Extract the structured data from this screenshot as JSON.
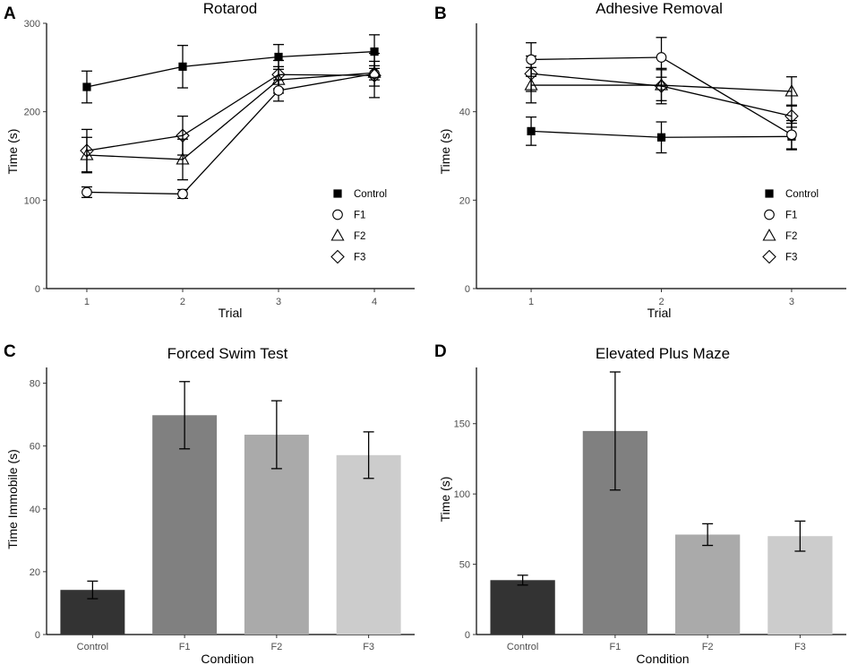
{
  "chart_data": [
    {
      "panel": "A",
      "type": "line",
      "title": "Rotarod",
      "xlabel": "Trial",
      "ylabel": "Time (s)",
      "x": [
        1,
        2,
        3,
        4
      ],
      "xticks": [
        "1",
        "2",
        "3",
        "4"
      ],
      "ylim": [
        0,
        300
      ],
      "yticks": [
        0,
        100,
        200,
        300
      ],
      "legend_position": "bottom-right",
      "series": [
        {
          "name": "Control",
          "marker": "filled-square",
          "values": [
            228,
            251,
            262,
            268
          ],
          "errors": [
            18,
            24,
            14,
            19
          ]
        },
        {
          "name": "F1",
          "marker": "open-circle",
          "values": [
            109,
            107,
            224,
            243
          ],
          "errors": [
            6,
            5,
            12,
            14
          ]
        },
        {
          "name": "F2",
          "marker": "open-triangle",
          "values": [
            151,
            146,
            236,
            244
          ],
          "errors": [
            20,
            23,
            15,
            8
          ]
        },
        {
          "name": "F3",
          "marker": "open-diamond",
          "values": [
            156,
            173,
            242,
            241
          ],
          "errors": [
            24,
            22,
            16,
            25
          ]
        }
      ]
    },
    {
      "panel": "B",
      "type": "line",
      "title": "Adhesive Removal",
      "xlabel": "Trial",
      "ylabel": "Time (s)",
      "x": [
        1,
        2,
        3
      ],
      "xticks": [
        "1",
        "2",
        "3"
      ],
      "ylim": [
        0,
        60
      ],
      "yticks": [
        0,
        20,
        40
      ],
      "legend_position": "bottom-right",
      "series": [
        {
          "name": "Control",
          "marker": "filled-square",
          "values": [
            35.6,
            34.2,
            34.4
          ],
          "errors": [
            3.2,
            3.5,
            3.0
          ]
        },
        {
          "name": "F1",
          "marker": "open-circle",
          "values": [
            51.8,
            52.3,
            34.8
          ],
          "errors": [
            3.8,
            4.5,
            3.2
          ]
        },
        {
          "name": "F2",
          "marker": "open-triangle",
          "values": [
            46.0,
            46.0,
            44.6
          ],
          "errors": [
            4.0,
            3.5,
            3.3
          ]
        },
        {
          "name": "F3",
          "marker": "open-diamond",
          "values": [
            48.6,
            45.8,
            39.0
          ],
          "errors": [
            4.0,
            4.0,
            2.5
          ]
        }
      ]
    },
    {
      "panel": "C",
      "type": "bar",
      "title": "Forced Swim Test",
      "xlabel": "Condition",
      "ylabel": "Time Immobile (s)",
      "categories": [
        "Control",
        "F1",
        "F2",
        "F3"
      ],
      "values": [
        14.2,
        69.8,
        63.6,
        57.1
      ],
      "errors": [
        2.8,
        10.7,
        10.8,
        7.4
      ],
      "colors": [
        "#333333",
        "#808080",
        "#aaaaaa",
        "#cccccc"
      ],
      "ylim": [
        0,
        85
      ],
      "yticks": [
        0,
        20,
        40,
        60,
        80
      ]
    },
    {
      "panel": "D",
      "type": "bar",
      "title": "Elevated Plus Maze",
      "xlabel": "Condition",
      "ylabel": "Time (s)",
      "categories": [
        "Control",
        "F1",
        "F2",
        "F3"
      ],
      "values": [
        38.7,
        144.8,
        71.1,
        70.0
      ],
      "errors": [
        3.5,
        42.0,
        7.7,
        10.7
      ],
      "colors": [
        "#333333",
        "#808080",
        "#aaaaaa",
        "#cccccc"
      ],
      "ylim": [
        0,
        190
      ],
      "yticks": [
        0,
        50,
        100,
        150
      ]
    }
  ]
}
